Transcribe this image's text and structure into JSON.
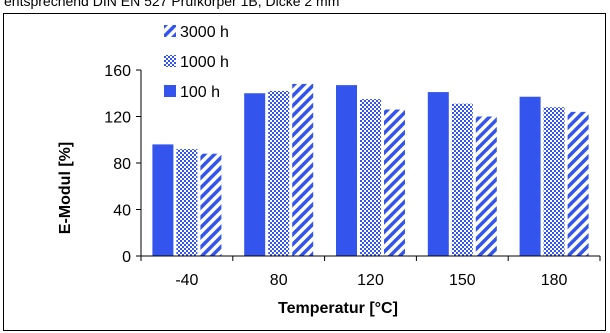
{
  "caption": "entsprechend DIN EN 527 Prüfkörper 1B, Dicke 2 mm",
  "chart_data": {
    "type": "bar",
    "categories": [
      "-40",
      "80",
      "120",
      "150",
      "180"
    ],
    "series": [
      {
        "name": "100 h",
        "values": [
          96,
          140,
          147,
          141,
          137
        ],
        "pattern": "solid"
      },
      {
        "name": "1000 h",
        "values": [
          92,
          142,
          135,
          131,
          128
        ],
        "pattern": "dotted"
      },
      {
        "name": "3000 h",
        "values": [
          88,
          148,
          126,
          120,
          124
        ],
        "pattern": "striped"
      }
    ],
    "xlabel": "Temperatur [°C]",
    "ylabel": "E-Modul [%]",
    "ylim": [
      0,
      160
    ],
    "yticks": [
      0,
      40,
      80,
      120,
      160
    ],
    "legend_order": [
      "3000 h",
      "1000 h",
      "100 h"
    ],
    "legend_position": "top-left",
    "grid": false,
    "bar_color": "#3355ee"
  }
}
